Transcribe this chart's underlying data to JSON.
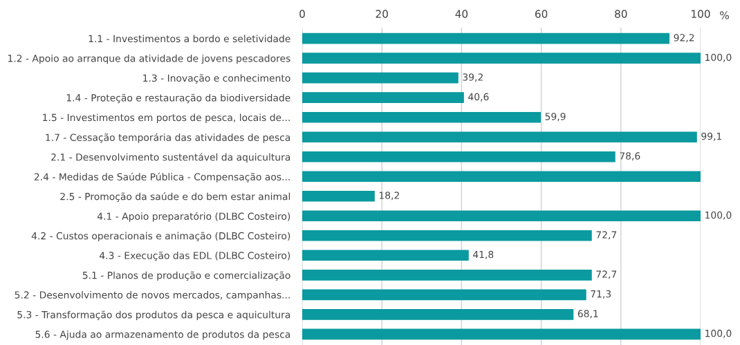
{
  "chart_data": {
    "type": "bar",
    "orientation": "horizontal",
    "xlabel": "%",
    "categories": [
      "1.1 - Investimentos a bordo e seletividade",
      "1.2 - Apoio ao arranque da atividade de jovens pescadores",
      "1.3 - Inovação e conhecimento",
      "1.4 - Proteção e restauração da biodiversidade",
      "1.5 - Investimentos em portos de pesca, locais de...",
      "1.7 - Cessação temporária das atividades de pesca",
      "2.1 - Desenvolvimento sustentável da aquicultura",
      "2.4 - Medidas de Saúde Pública - Compensação aos...",
      "2.5 - Promoção da saúde e do bem estar animal",
      "4.1 - Apoio preparatório (DLBC Costeiro)",
      "4.2 - Custos operacionais e animação (DLBC Costeiro)",
      "4.3 - Execução das EDL (DLBC Costeiro)",
      "5.1 - Planos de produção e comercialização",
      "5.2 - Desenvolvimento de novos mercados, campanhas...",
      "5.3 - Transformação dos produtos da pesca e aquicultura",
      "5.6 - Ajuda ao armazenamento de produtos da pesca"
    ],
    "values": [
      92.2,
      100,
      39.2,
      40.6,
      59.9,
      99.1,
      78.6,
      100,
      18.2,
      100,
      72.7,
      41.8,
      72.7,
      71.3,
      68.1,
      100
    ],
    "value_labels": [
      "92,2",
      "100,0",
      "39,2",
      "40,6",
      "59,9",
      "99,1",
      "78,6",
      null,
      "18,2",
      "100,0",
      "72,7",
      "41,8",
      "72,7",
      "71,3",
      "68,1",
      "100,0"
    ],
    "color": "#0a9a9f",
    "xlim": [
      0,
      100
    ],
    "xticks": [
      0,
      20,
      40,
      60,
      80,
      100
    ],
    "grid": "x"
  }
}
